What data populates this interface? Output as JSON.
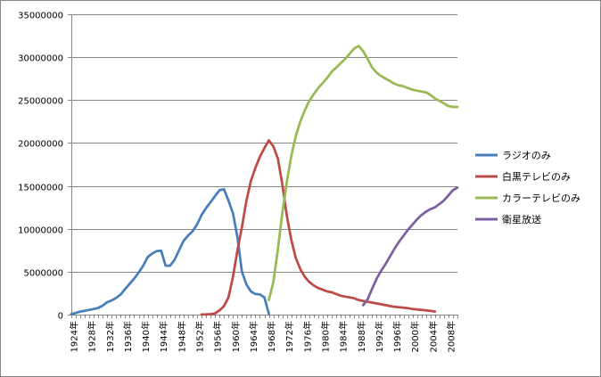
{
  "chart_data": {
    "type": "line",
    "title": "",
    "xlabel": "",
    "ylabel": "",
    "ylim": [
      0,
      35000000
    ],
    "y_ticks": [
      "0",
      "5000000",
      "10000000",
      "15000000",
      "20000000",
      "25000000",
      "30000000",
      "35000000"
    ],
    "x_start_year": 1924,
    "x_end_year": 2010,
    "x_tick_labels": [
      "1924年",
      "1928年",
      "1932年",
      "1936年",
      "1940年",
      "1944年",
      "1948年",
      "1952年",
      "1956年",
      "1960年",
      "1964年",
      "1968年",
      "1972年",
      "1976年",
      "1980年",
      "1984年",
      "1988年",
      "1992年",
      "1996年",
      "2000年",
      "2004年",
      "2008年"
    ],
    "grid": true,
    "legend_position": "right",
    "series": [
      {
        "name": "ラジオのみ",
        "color": "#4A7EBB",
        "x": [
          1924,
          1925,
          1926,
          1927,
          1928,
          1929,
          1930,
          1931,
          1932,
          1933,
          1934,
          1935,
          1936,
          1937,
          1938,
          1939,
          1940,
          1941,
          1942,
          1943,
          1944,
          1945,
          1946,
          1947,
          1948,
          1949,
          1950,
          1951,
          1952,
          1953,
          1954,
          1955,
          1956,
          1957,
          1958,
          1959,
          1960,
          1961,
          1962,
          1963,
          1964,
          1965,
          1966,
          1967,
          1968
        ],
        "values": [
          50000,
          200000,
          350000,
          450000,
          550000,
          650000,
          780000,
          1050000,
          1450000,
          1650000,
          1950000,
          2350000,
          3000000,
          3600000,
          4200000,
          4900000,
          5700000,
          6700000,
          7100000,
          7400000,
          7450000,
          5700000,
          5700000,
          6400000,
          7500000,
          8600000,
          9200000,
          9700000,
          10500000,
          11600000,
          12400000,
          13100000,
          13800000,
          14500000,
          14600000,
          13300000,
          11800000,
          9000000,
          5000000,
          3500000,
          2700000,
          2400000,
          2350000,
          2000000,
          100000
        ]
      },
      {
        "name": "白黒テレビのみ",
        "color": "#BE4B48",
        "x": [
          1953,
          1954,
          1955,
          1956,
          1957,
          1958,
          1959,
          1960,
          1961,
          1962,
          1963,
          1964,
          1965,
          1966,
          1967,
          1968,
          1969,
          1970,
          1971,
          1972,
          1973,
          1974,
          1975,
          1976,
          1977,
          1978,
          1979,
          1980,
          1981,
          1982,
          1983,
          1984,
          1985,
          1986,
          1987,
          1988,
          1989,
          1990,
          1991,
          1992,
          1993,
          1994,
          1995,
          1996,
          1997,
          1998,
          1999,
          2000,
          2001,
          2002,
          2003,
          2004,
          2005
        ],
        "values": [
          10000,
          20000,
          50000,
          150000,
          500000,
          1000000,
          2000000,
          4400000,
          7500000,
          10200000,
          13300000,
          15600000,
          17100000,
          18400000,
          19400000,
          20300000,
          19600000,
          18200000,
          15200000,
          11500000,
          8700000,
          6600000,
          5300000,
          4400000,
          3800000,
          3400000,
          3100000,
          2900000,
          2700000,
          2600000,
          2400000,
          2200000,
          2100000,
          2000000,
          1900000,
          1700000,
          1600000,
          1500000,
          1400000,
          1300000,
          1200000,
          1100000,
          1000000,
          900000,
          850000,
          800000,
          750000,
          650000,
          600000,
          550000,
          500000,
          450000,
          350000
        ]
      },
      {
        "name": "カラーテレビのみ",
        "color": "#98B954",
        "x": [
          1968,
          1969,
          1970,
          1971,
          1972,
          1973,
          1974,
          1975,
          1976,
          1977,
          1978,
          1979,
          1980,
          1981,
          1982,
          1983,
          1984,
          1985,
          1986,
          1987,
          1988,
          1989,
          1990,
          1991,
          1992,
          1993,
          1994,
          1995,
          1996,
          1997,
          1998,
          1999,
          2000,
          2001,
          2002,
          2003,
          2004,
          2005,
          2006,
          2007,
          2008,
          2009,
          2010
        ],
        "values": [
          1700000,
          3800000,
          7600000,
          11800000,
          15500000,
          18500000,
          20800000,
          22500000,
          23800000,
          24900000,
          25700000,
          26400000,
          27000000,
          27600000,
          28300000,
          28800000,
          29300000,
          29800000,
          30400000,
          31000000,
          31300000,
          30700000,
          29800000,
          28800000,
          28200000,
          27800000,
          27500000,
          27200000,
          26900000,
          26700000,
          26600000,
          26400000,
          26200000,
          26100000,
          26000000,
          25900000,
          25600000,
          25200000,
          24900000,
          24600000,
          24300000,
          24200000,
          24200000
        ]
      },
      {
        "name": "衛星放送",
        "color": "#7D60A0",
        "x": [
          1989,
          1990,
          1991,
          1992,
          1993,
          1994,
          1995,
          1996,
          1997,
          1998,
          1999,
          2000,
          2001,
          2002,
          2003,
          2004,
          2005,
          2006,
          2007,
          2008,
          2009,
          2010
        ],
        "values": [
          1100000,
          1800000,
          3000000,
          4200000,
          5100000,
          5900000,
          6800000,
          7700000,
          8500000,
          9200000,
          9900000,
          10500000,
          11100000,
          11600000,
          12000000,
          12300000,
          12500000,
          12900000,
          13300000,
          13900000,
          14500000,
          14800000
        ]
      }
    ]
  }
}
